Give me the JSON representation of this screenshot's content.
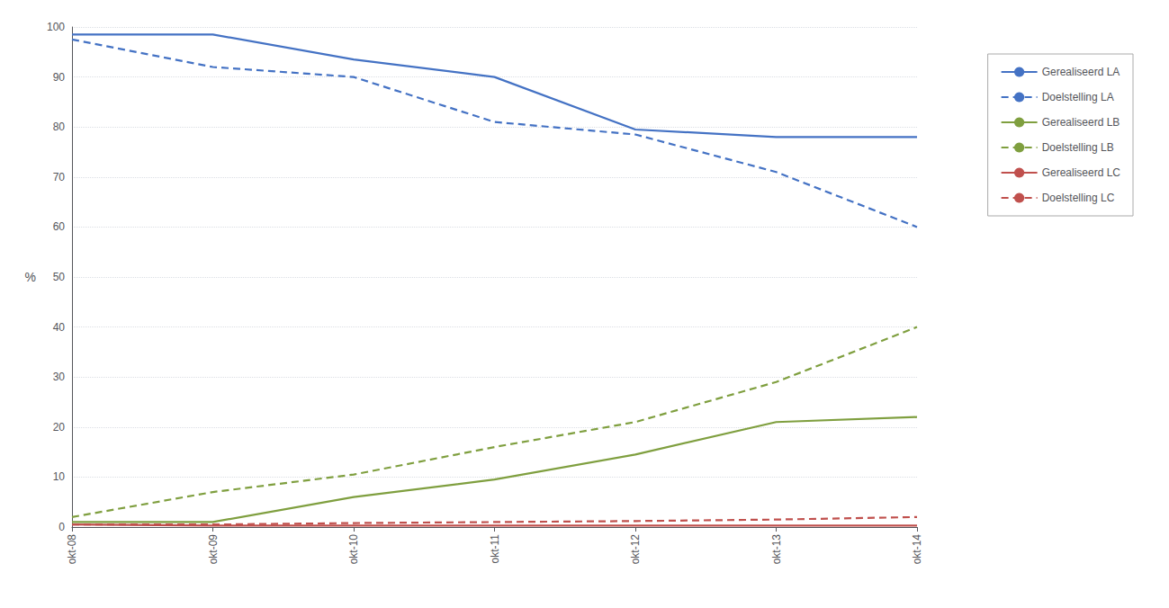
{
  "chart_data": {
    "type": "line",
    "categories": [
      "okt-08",
      "okt-09",
      "okt-10",
      "okt-11",
      "okt-12",
      "okt-13",
      "okt-14"
    ],
    "ylabel": "%",
    "ylim": [
      0,
      100
    ],
    "yticks": [
      0,
      10,
      20,
      30,
      40,
      50,
      60,
      70,
      80,
      90,
      100
    ],
    "grid": true,
    "legend": "right",
    "series": [
      {
        "name": "Gerealiseerd LA",
        "color": "#4472C4",
        "line_style": "solid",
        "values": [
          98.5,
          98.5,
          93.5,
          90.0,
          79.5,
          78.0,
          78.0
        ]
      },
      {
        "name": "Doelstelling LA",
        "color": "#4472C4",
        "line_style": "dashed",
        "values": [
          97.5,
          92.0,
          90.0,
          81.0,
          78.5,
          71.0,
          60.0
        ]
      },
      {
        "name": "Gerealiseerd LB",
        "color": "#7F9F3F",
        "line_style": "solid",
        "values": [
          1.0,
          1.0,
          6.0,
          9.5,
          14.5,
          21.0,
          22.0
        ]
      },
      {
        "name": "Doelstelling LB",
        "color": "#7F9F3F",
        "line_style": "dashed",
        "values": [
          2.0,
          7.0,
          10.5,
          16.0,
          21.0,
          29.0,
          40.0
        ]
      },
      {
        "name": "Gerealiseerd LC",
        "color": "#C0504D",
        "line_style": "solid",
        "values": [
          0.5,
          0.3,
          0.3,
          0.3,
          0.3,
          0.3,
          0.3
        ]
      },
      {
        "name": "Doelstelling LC",
        "color": "#C0504D",
        "line_style": "dashed",
        "values": [
          0.5,
          0.5,
          0.8,
          1.0,
          1.2,
          1.5,
          2.0
        ]
      }
    ]
  }
}
